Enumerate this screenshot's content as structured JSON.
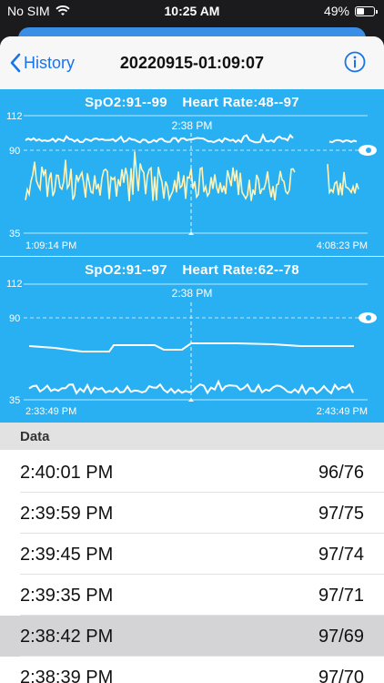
{
  "status_bar": {
    "carrier": "No SIM",
    "time": "10:25 AM",
    "battery": "49%",
    "battery_level": 0.49
  },
  "nav": {
    "back_label": "History",
    "title": "20220915-01:09:07",
    "info_icon": "info-icon"
  },
  "charts": [
    {
      "spo2_text": "SpO2:91--99",
      "hr_text": "Heart Rate:48--97",
      "cursor_time": "2:38 PM",
      "y_top": "112",
      "y_mid": "90",
      "y_bottom": "35",
      "start_time": "1:09:14 PM",
      "end_time": "4:08:23 PM"
    },
    {
      "spo2_text": "SpO2:91--97",
      "hr_text": "Heart Rate:62--78",
      "cursor_time": "2:38 PM",
      "y_top": "112",
      "y_mid": "90",
      "y_bottom": "35",
      "start_time": "2:33:49 PM",
      "end_time": "2:43:49 PM"
    }
  ],
  "data_section": {
    "header": "Data",
    "rows": [
      {
        "time": "2:40:01 PM",
        "value": "96/76",
        "selected": false
      },
      {
        "time": "2:39:59 PM",
        "value": "97/75",
        "selected": false
      },
      {
        "time": "2:39:45 PM",
        "value": "97/74",
        "selected": false
      },
      {
        "time": "2:39:35 PM",
        "value": "97/71",
        "selected": false
      },
      {
        "time": "2:38:42 PM",
        "value": "97/69",
        "selected": true
      },
      {
        "time": "2:38:39 PM",
        "value": "97/70",
        "selected": false
      }
    ]
  },
  "colors": {
    "chart_bg": "#29b0f2",
    "spo2_line": "#ffffff",
    "hr_line_overview": "#fff4b8",
    "hr_line_detail": "#ffffff",
    "accent": "#1a73e8",
    "selected_row": "#d4d4d6"
  }
}
